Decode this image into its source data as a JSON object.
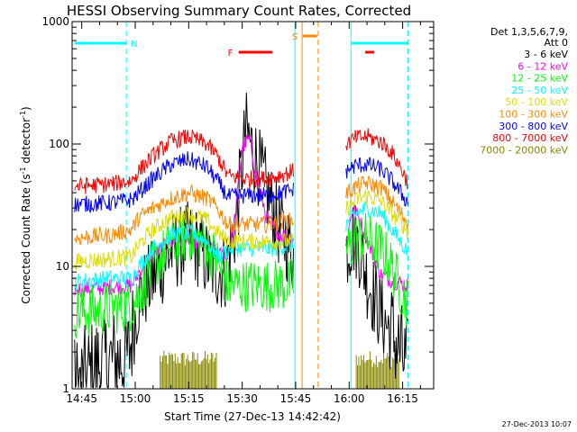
{
  "chart_data": {
    "type": "line",
    "title": "HESSI Observing Summary Count Rates, Corrected",
    "xlabel": "Start Time (27-Dec-13 14:42:42)",
    "ylabel_main": "Corrected Count Rate (s",
    "ylabel_sup1": "-1",
    "ylabel_mid": " detector",
    "ylabel_sup2": "-1",
    "ylabel_end": ")",
    "timestamp": "27-Dec-2013 10:07",
    "yscale": "log",
    "ylim": [
      1,
      1000
    ],
    "xlim": [
      -2.7,
      98.7
    ],
    "x_unit": "minutes after 14:45 UT",
    "x_ticks": [
      {
        "label": "14:45",
        "x": 0
      },
      {
        "label": "15:00",
        "x": 15
      },
      {
        "label": "15:15",
        "x": 30
      },
      {
        "label": "15:30",
        "x": 45
      },
      {
        "label": "15:45",
        "x": 60
      },
      {
        "label": "16:00",
        "x": 75
      },
      {
        "label": "16:15",
        "x": 90
      }
    ],
    "y_ticks": [
      {
        "label": "1",
        "y": 1
      },
      {
        "label": "10",
        "y": 10
      },
      {
        "label": "100",
        "y": 100
      },
      {
        "label": "1000",
        "y": 1000
      }
    ],
    "legend_header": [
      "Det 1,3,5,6,7,9,",
      "Att 0"
    ],
    "legend_position": "right",
    "series": [
      {
        "name": "3 - 6 keV",
        "color": "#000000",
        "points": [
          [
            -2,
            1.0
          ],
          [
            5,
            1.6
          ],
          [
            13,
            1.8
          ],
          [
            14,
            2.6
          ],
          [
            16,
            5.5
          ],
          [
            20,
            8
          ],
          [
            25,
            13
          ],
          [
            30,
            16
          ],
          [
            33,
            14
          ],
          [
            36,
            10
          ],
          [
            40,
            9
          ],
          [
            43,
            20
          ],
          [
            46,
            130
          ],
          [
            49,
            75
          ],
          [
            52,
            40
          ],
          [
            55,
            22
          ],
          [
            58,
            15
          ],
          [
            59.5,
            12
          ],
          [
            74,
            13
          ],
          [
            76,
            18
          ],
          [
            78,
            14
          ],
          [
            80,
            8
          ],
          [
            84,
            4
          ],
          [
            88,
            2.5
          ],
          [
            91.5,
            1.4
          ]
        ]
      },
      {
        "name": "6 - 12 keV",
        "color": "#ff00ff",
        "points": [
          [
            -2,
            6.5
          ],
          [
            8,
            6.8
          ],
          [
            14,
            7
          ],
          [
            16,
            9
          ],
          [
            20,
            12
          ],
          [
            25,
            16
          ],
          [
            30,
            17
          ],
          [
            35,
            15
          ],
          [
            38,
            12
          ],
          [
            41,
            13
          ],
          [
            43,
            25
          ],
          [
            45,
            95
          ],
          [
            47,
            110
          ],
          [
            49,
            55
          ],
          [
            52,
            24
          ],
          [
            56,
            18
          ],
          [
            59.5,
            17
          ],
          [
            74,
            15
          ],
          [
            76,
            30
          ],
          [
            78,
            24
          ],
          [
            81,
            14
          ],
          [
            84,
            8.5
          ],
          [
            88,
            7.5
          ],
          [
            91.5,
            7
          ]
        ]
      },
      {
        "name": "12 - 25 keV",
        "color": "#00ff00",
        "points": [
          [
            -2,
            4.2
          ],
          [
            8,
            4.5
          ],
          [
            14,
            4.8
          ],
          [
            16,
            6
          ],
          [
            20,
            10
          ],
          [
            25,
            15
          ],
          [
            30,
            18
          ],
          [
            35,
            15
          ],
          [
            38,
            11
          ],
          [
            41,
            7
          ],
          [
            46,
            7
          ],
          [
            52,
            7
          ],
          [
            58,
            7
          ],
          [
            59.5,
            7.5
          ],
          [
            74,
            13
          ],
          [
            77,
            17
          ],
          [
            80,
            17
          ],
          [
            84,
            14
          ],
          [
            87,
            10
          ],
          [
            90,
            6
          ],
          [
            91.5,
            5
          ]
        ]
      },
      {
        "name": "25 - 50 keV",
        "color": "#00ffff",
        "points": [
          [
            -2,
            7.5
          ],
          [
            8,
            8
          ],
          [
            14,
            8
          ],
          [
            16,
            10
          ],
          [
            20,
            14
          ],
          [
            25,
            18
          ],
          [
            30,
            19
          ],
          [
            35,
            16
          ],
          [
            38,
            12
          ],
          [
            42,
            14
          ],
          [
            48,
            14
          ],
          [
            54,
            14
          ],
          [
            59.5,
            15
          ],
          [
            74,
            22
          ],
          [
            77,
            27
          ],
          [
            80,
            30
          ],
          [
            84,
            27
          ],
          [
            87,
            20
          ],
          [
            90,
            15
          ],
          [
            91.5,
            13
          ]
        ]
      },
      {
        "name": "50 - 100 keV",
        "color": "#dddd00",
        "points": [
          [
            -2,
            11
          ],
          [
            8,
            11.5
          ],
          [
            14,
            12
          ],
          [
            16,
            15
          ],
          [
            20,
            20
          ],
          [
            25,
            25
          ],
          [
            30,
            27
          ],
          [
            35,
            24
          ],
          [
            38,
            19
          ],
          [
            41,
            16
          ],
          [
            46,
            16
          ],
          [
            52,
            16
          ],
          [
            59.5,
            16
          ],
          [
            74,
            29
          ],
          [
            77,
            35
          ],
          [
            80,
            38
          ],
          [
            84,
            34
          ],
          [
            87,
            27
          ],
          [
            90,
            22
          ],
          [
            91.5,
            19
          ]
        ]
      },
      {
        "name": "100 - 300 keV",
        "color": "#ff8800",
        "points": [
          [
            -2,
            17
          ],
          [
            8,
            18
          ],
          [
            14,
            20
          ],
          [
            16,
            25
          ],
          [
            20,
            30
          ],
          [
            25,
            36
          ],
          [
            30,
            40
          ],
          [
            35,
            36
          ],
          [
            38,
            30
          ],
          [
            41,
            22
          ],
          [
            46,
            22
          ],
          [
            52,
            22
          ],
          [
            59.5,
            24
          ],
          [
            74,
            39
          ],
          [
            77,
            45
          ],
          [
            80,
            48
          ],
          [
            84,
            44
          ],
          [
            87,
            34
          ],
          [
            90,
            26
          ],
          [
            91.5,
            23
          ]
        ]
      },
      {
        "name": "300 - 800 keV",
        "color": "#0000ff",
        "points": [
          [
            -2,
            32
          ],
          [
            8,
            33
          ],
          [
            14,
            35
          ],
          [
            16,
            40
          ],
          [
            20,
            52
          ],
          [
            25,
            68
          ],
          [
            30,
            75
          ],
          [
            35,
            65
          ],
          [
            38,
            50
          ],
          [
            41,
            37
          ],
          [
            46,
            38
          ],
          [
            52,
            38
          ],
          [
            59.5,
            42
          ],
          [
            74,
            60
          ],
          [
            77,
            67
          ],
          [
            80,
            68
          ],
          [
            84,
            62
          ],
          [
            87,
            50
          ],
          [
            90,
            38
          ],
          [
            91.5,
            33
          ]
        ]
      },
      {
        "name": "800 - 7000 keV",
        "color": "#ff0000",
        "points": [
          [
            -2,
            45
          ],
          [
            8,
            47
          ],
          [
            14,
            50
          ],
          [
            16,
            60
          ],
          [
            20,
            80
          ],
          [
            25,
            105
          ],
          [
            30,
            115
          ],
          [
            35,
            100
          ],
          [
            38,
            80
          ],
          [
            41,
            55
          ],
          [
            46,
            52
          ],
          [
            52,
            52
          ],
          [
            59.5,
            60
          ],
          [
            74,
            100
          ],
          [
            77,
            112
          ],
          [
            80,
            115
          ],
          [
            84,
            104
          ],
          [
            87,
            85
          ],
          [
            90,
            60
          ],
          [
            91.5,
            48
          ]
        ]
      },
      {
        "name": "7000 - 20000 keV",
        "color": "#888800",
        "points": []
      }
    ],
    "pulses_7000_20000": [
      [
        22,
        38
      ],
      [
        77,
        89
      ]
    ],
    "flag_bars": [
      {
        "label": "N",
        "color": "#00ffff",
        "segments": [
          [
            -2,
            12.5
          ],
          [
            75.5,
            91.5
          ]
        ]
      },
      {
        "label": "F",
        "color": "#ff0000",
        "segments": [
          [
            44,
            53.5
          ],
          [
            79.5,
            82
          ]
        ]
      },
      {
        "label": "S",
        "color": "#ff8800",
        "segments": [
          [
            62,
            66
          ]
        ]
      }
    ],
    "vlines": [
      {
        "x": 12.5,
        "color": "#00ffff",
        "style": "dashed"
      },
      {
        "x": 59.8,
        "color": "#00ffff",
        "style": "solid"
      },
      {
        "x": 75.5,
        "color": "#00ffff",
        "style": "solid"
      },
      {
        "x": 91.5,
        "color": "#00ffff",
        "style": "dashed"
      },
      {
        "x": 61.8,
        "color": "#ff8800",
        "style": "solid"
      },
      {
        "x": 66.3,
        "color": "#ff8800",
        "style": "dashed"
      }
    ]
  }
}
